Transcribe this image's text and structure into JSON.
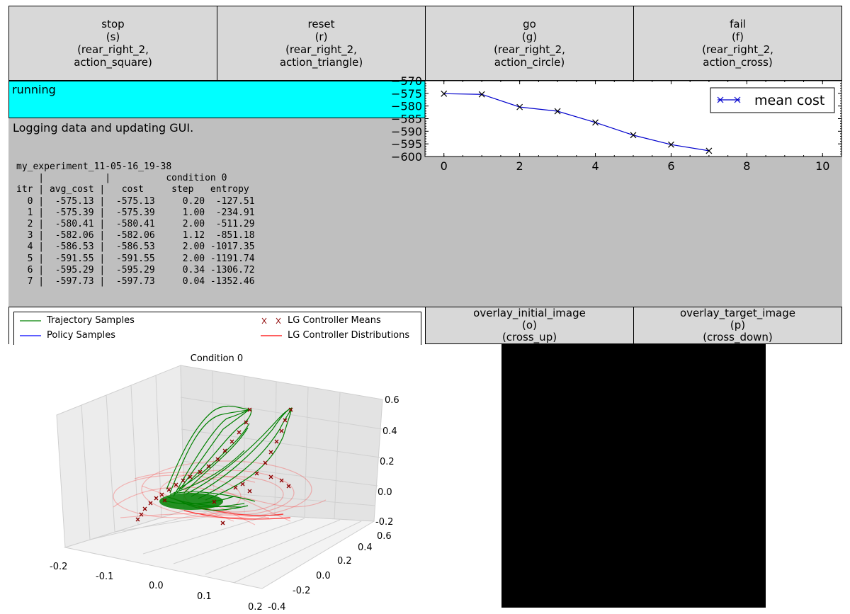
{
  "action_buttons": [
    {
      "lines": [
        "stop",
        "(s)",
        "(rear_right_2,",
        "action_square)"
      ]
    },
    {
      "lines": [
        "reset",
        "(r)",
        "(rear_right_2,",
        "action_triangle)"
      ]
    },
    {
      "lines": [
        "go",
        "(g)",
        "(rear_right_2,",
        "action_circle)"
      ]
    },
    {
      "lines": [
        "fail",
        "(f)",
        "(rear_right_2,",
        "action_cross)"
      ]
    }
  ],
  "status": {
    "text": "running",
    "color": "#00ffff"
  },
  "output": {
    "message": "Logging data and updating GUI.",
    "log_title": "my_experiment_11-05-16_19-38",
    "log_subheader": "    |           |          condition 0",
    "log_header": "itr | avg_cost |   cost     step   entropy",
    "log_rows": [
      "  0 |  -575.13 |  -575.13     0.20  -127.51",
      "  1 |  -575.39 |  -575.39     1.00  -234.91",
      "  2 |  -580.41 |  -580.41     2.00  -511.29",
      "  3 |  -582.06 |  -582.06     1.12  -851.18",
      "  4 |  -586.53 |  -586.53     2.00 -1017.35",
      "  5 |  -591.55 |  -591.55     2.00 -1191.74",
      "  6 |  -595.29 |  -595.29     0.34 -1306.72",
      "  7 |  -597.73 |  -597.73     0.04 -1352.46"
    ]
  },
  "chart_data": [
    {
      "type": "line",
      "x": [
        0,
        1,
        2,
        3,
        4,
        5,
        6,
        7
      ],
      "series": [
        {
          "name": "mean cost",
          "values": [
            -575.13,
            -575.39,
            -580.41,
            -582.06,
            -586.53,
            -591.55,
            -595.29,
            -597.73
          ],
          "color": "#0000cc",
          "marker": "x"
        }
      ],
      "xlim": [
        -0.5,
        10.5
      ],
      "ylim": [
        -600,
        -570
      ],
      "xticks": [
        "0",
        "2",
        "4",
        "6",
        "8",
        "10"
      ],
      "yticks": [
        "-570",
        "-575",
        "-580",
        "-585",
        "-590",
        "-595",
        "-600"
      ],
      "legend": "top-right"
    },
    {
      "type": "scatter",
      "title": "Condition 0",
      "xticks": [
        "-0.2",
        "-0.1",
        "0.0",
        "0.1",
        "0.2"
      ],
      "yticks": [
        "-0.4",
        "-0.2",
        "0.0",
        "0.2",
        "0.4",
        "0.6"
      ],
      "zticks": [
        "-0.2",
        "0.0",
        "0.2",
        "0.4",
        "0.6"
      ],
      "legend_entries": [
        {
          "label": "Trajectory Samples",
          "color": "#008000",
          "marker": "line"
        },
        {
          "label": "LG Controller Means",
          "color": "#8b0000",
          "marker": "x"
        },
        {
          "label": "Policy Samples",
          "color": "#0000ff",
          "marker": "line"
        },
        {
          "label": "LG Controller Distributions",
          "color": "#ff0000",
          "marker": "line"
        }
      ]
    }
  ],
  "overlay_buttons": [
    {
      "lines": [
        "overlay_initial_image",
        "(o)",
        "(cross_up)"
      ]
    },
    {
      "lines": [
        "overlay_target_image",
        "(p)",
        "(cross_down)"
      ]
    }
  ],
  "image_panel": {
    "color": "#000000"
  }
}
